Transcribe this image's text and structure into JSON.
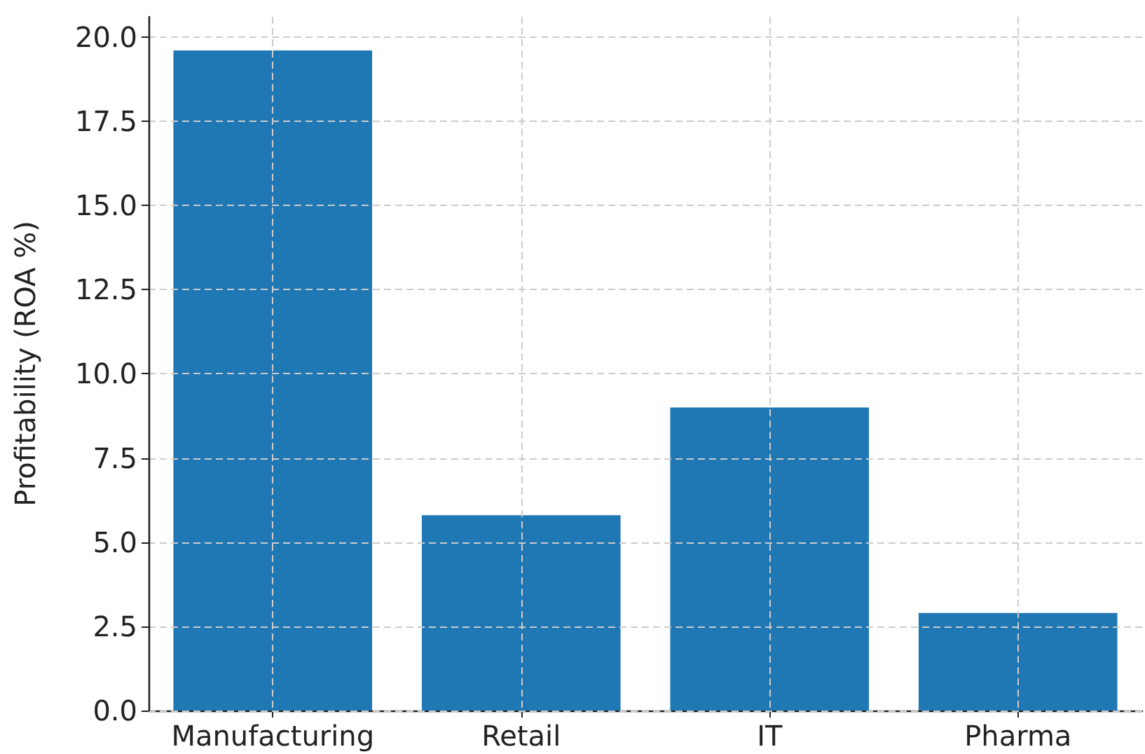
{
  "chart_data": {
    "type": "bar",
    "ylabel": "Profitability (ROA %)",
    "categories": [
      "Manufacturing",
      "Retail",
      "IT",
      "Pharma"
    ],
    "values": [
      19.6,
      5.8,
      9.0,
      2.9
    ],
    "color": "#1f77b4",
    "ylim": [
      0,
      20.6
    ],
    "yticks": [
      {
        "value": 0,
        "label": "0.0"
      },
      2.5,
      {
        "value": 5,
        "label": "5.0"
      },
      7.5,
      {
        "value": 10,
        "label": "10.0"
      },
      12.5,
      {
        "value": 15,
        "label": "15.0"
      },
      17.5,
      {
        "value": 20,
        "label": "20.0"
      }
    ],
    "grid": true
  }
}
